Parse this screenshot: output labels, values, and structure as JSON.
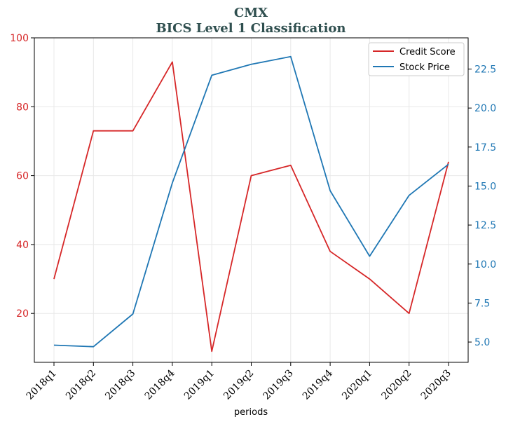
{
  "chart_data": {
    "type": "line",
    "title": "CMX",
    "subtitle": "BICS Level 1 Classification",
    "xlabel": "periods",
    "categories": [
      "2018q1",
      "2018q2",
      "2018q3",
      "2018q4",
      "2019q1",
      "2019q2",
      "2019q3",
      "2019q4",
      "2020q1",
      "2020q2",
      "2020q3"
    ],
    "series": [
      {
        "name": "Credit Score",
        "axis": "left",
        "color": "#d62728",
        "values": [
          30,
          73,
          73,
          93,
          9,
          60,
          63,
          38,
          30,
          20,
          64
        ]
      },
      {
        "name": "Stock Price",
        "axis": "right",
        "color": "#1f77b4",
        "values": [
          4.8,
          4.7,
          6.8,
          15.2,
          22.1,
          22.8,
          23.3,
          14.7,
          10.5,
          14.4,
          16.4
        ]
      }
    ],
    "left_axis": {
      "ylim": [
        5.8,
        100
      ],
      "ticks": [
        20,
        40,
        60,
        80,
        100
      ],
      "color": "#d62728"
    },
    "right_axis": {
      "ylim": [
        3.7,
        24.5
      ],
      "ticks": [
        "5.0",
        "7.5",
        "10.0",
        "12.5",
        "15.0",
        "17.5",
        "20.0",
        "22.5"
      ],
      "color": "#1f77b4"
    },
    "grid": true,
    "legend_position": "top-right"
  }
}
